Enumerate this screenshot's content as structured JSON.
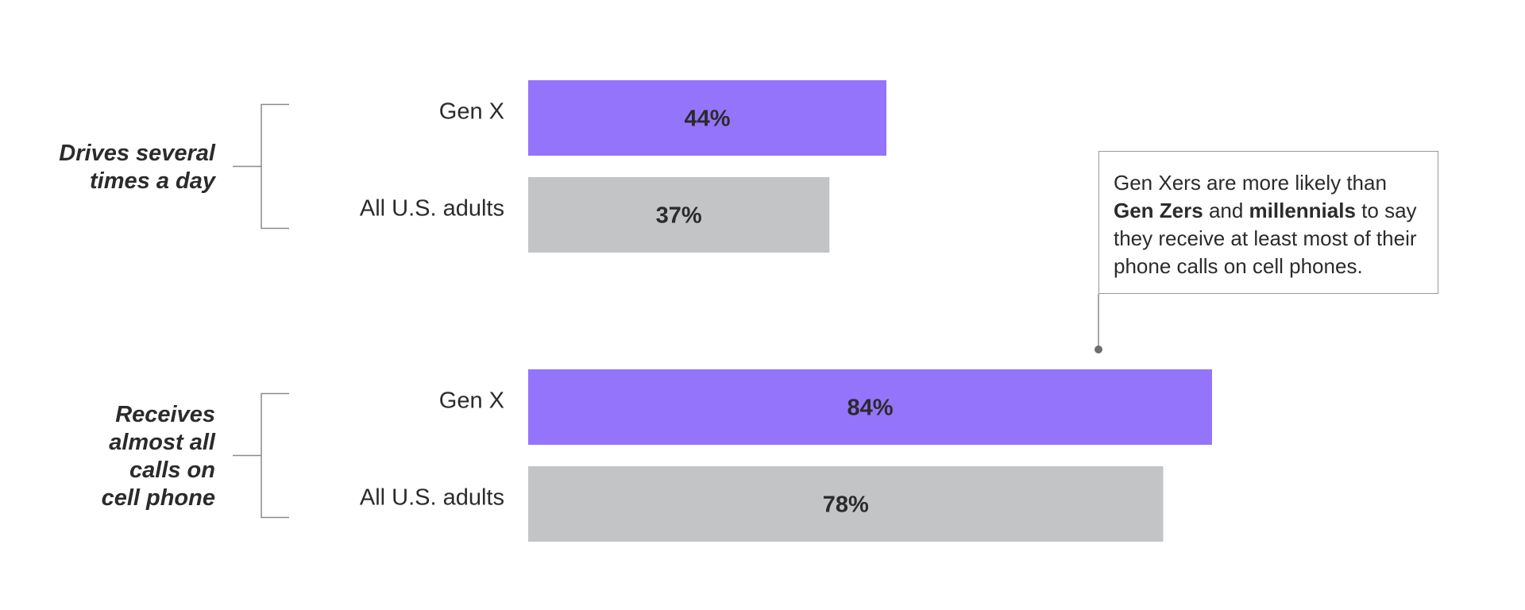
{
  "chart_data": {
    "type": "bar",
    "orientation": "horizontal",
    "xlim": [
      0,
      100
    ],
    "groups": [
      {
        "label_lines": [
          "Drives several",
          "times a day"
        ],
        "bars": [
          {
            "category": "Gen X",
            "value": 44,
            "label": "44%",
            "color": "#9474fb"
          },
          {
            "category": "All U.S. adults",
            "value": 37,
            "label": "37%",
            "color": "#c2c4c5"
          }
        ]
      },
      {
        "label_lines": [
          "Receives",
          "almost all",
          "calls on",
          "cell phone"
        ],
        "bars": [
          {
            "category": "Gen X",
            "value": 84,
            "label": "84%",
            "color": "#9474fb"
          },
          {
            "category": "All U.S. adults",
            "value": 78,
            "label": "78%",
            "color": "#c2c4c5"
          }
        ]
      }
    ],
    "annotation": {
      "segments": [
        {
          "text": "Gen Xers are more likely than ",
          "bold": false
        },
        {
          "text": "Gen Zers",
          "bold": true
        },
        {
          "text": " and ",
          "bold": false
        },
        {
          "text": "millennials",
          "bold": true
        },
        {
          "text": " to say they receive at least most of their phone calls on cell phones.",
          "bold": false
        }
      ]
    }
  }
}
